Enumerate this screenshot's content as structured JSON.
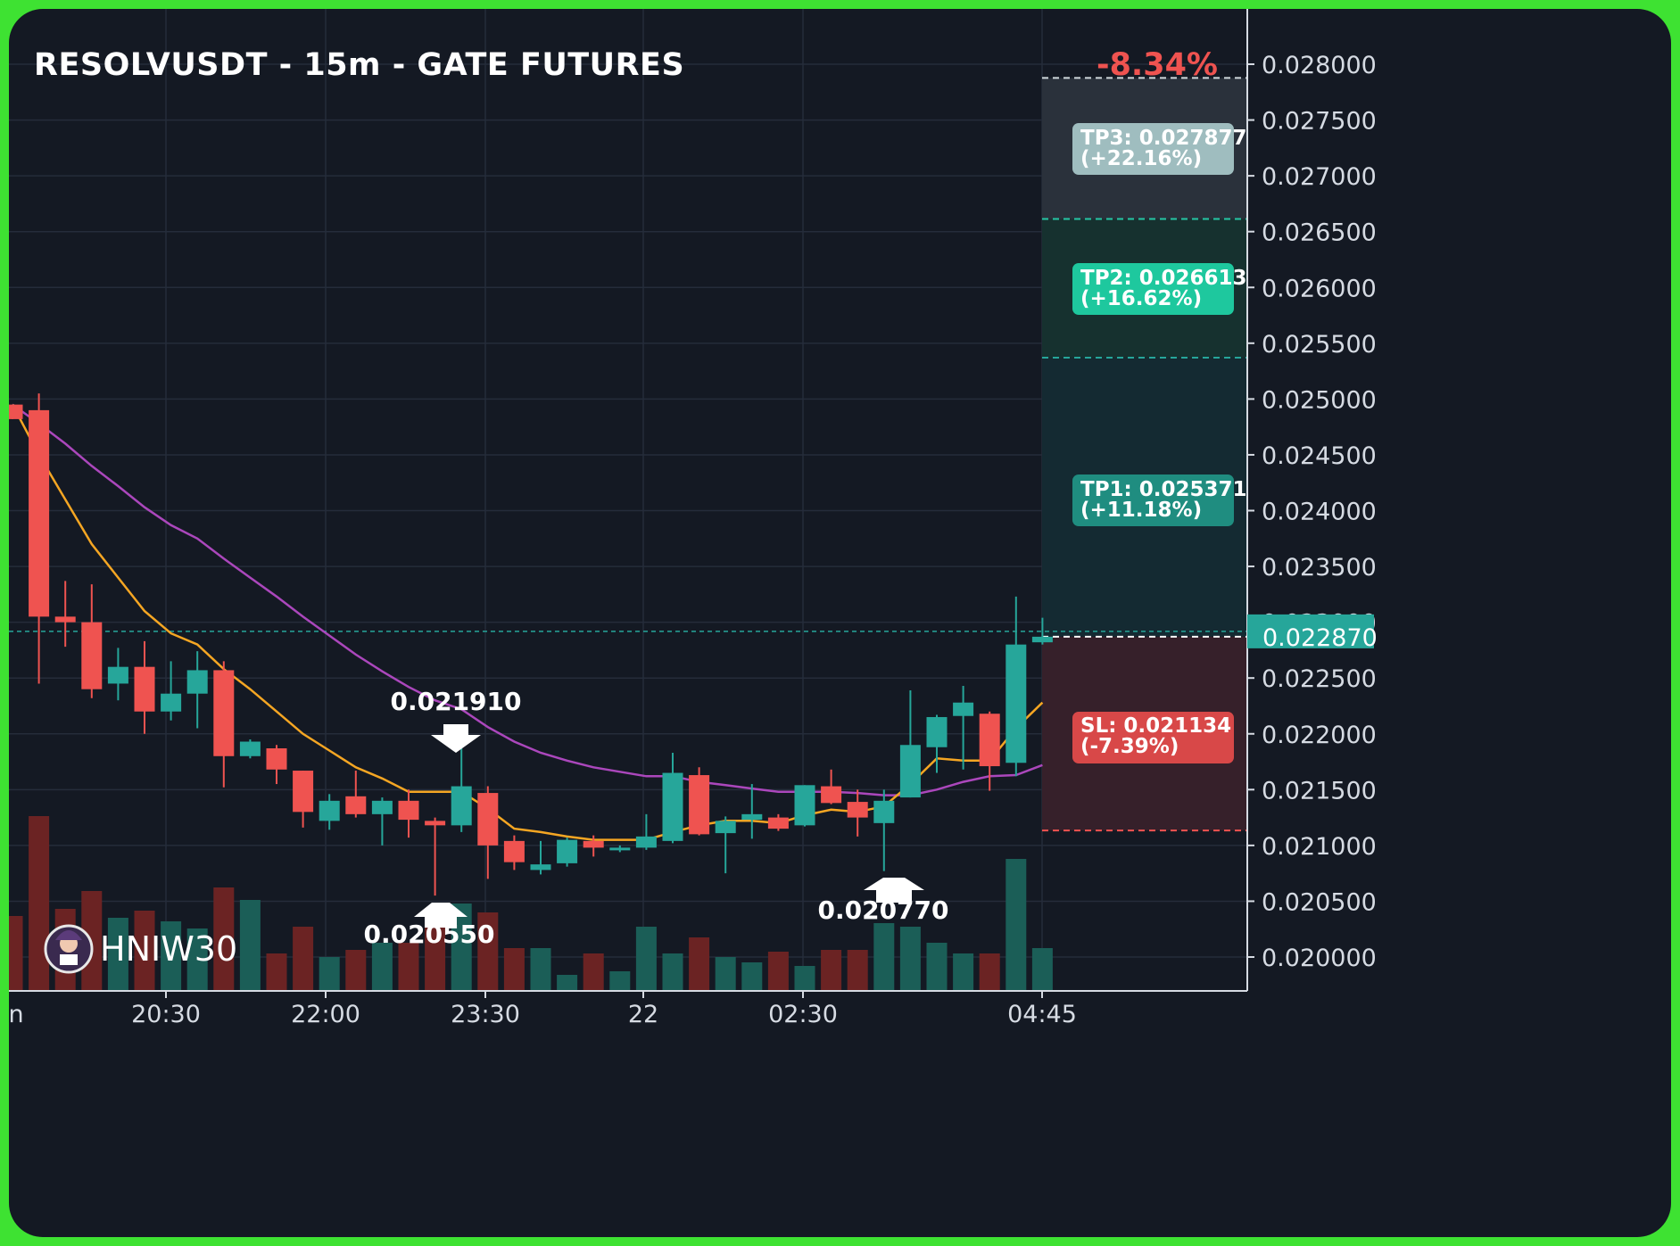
{
  "header": {
    "title": "RESOLVUSDT - 15m - GATE FUTURES",
    "change": "-8.34%"
  },
  "colors": {
    "background": "#141923",
    "frame": "#3ee232",
    "up": "#26a69a",
    "down": "#ef5350",
    "volume_up": "#1b5e57",
    "volume_down": "#6b2323",
    "ma_fast": "#f5a623",
    "ma_slow": "#ab47bc",
    "tp1": "#1f8d80",
    "tp2": "#1ec89e",
    "tp3": "#9fbdbf",
    "sl": "#d84848"
  },
  "price_axis": {
    "ticks": [
      "0.028000",
      "0.027500",
      "0.027000",
      "0.026500",
      "0.026000",
      "0.025500",
      "0.025000",
      "0.024500",
      "0.024000",
      "0.023500",
      "0.023000",
      "0.022500",
      "0.022000",
      "0.021500",
      "0.021000",
      "0.020500",
      "0.020000"
    ],
    "current_price": "0.022870"
  },
  "time_axis": {
    "labels": [
      "n",
      "20:30",
      "22:00",
      "23:30",
      "22",
      "02:30",
      "04:45"
    ]
  },
  "targets": {
    "tp3": {
      "line1": "TP3: 0.027877",
      "line2": "(+22.16%)"
    },
    "tp2": {
      "line1": "TP2: 0.026613",
      "line2": "(+16.62%)"
    },
    "tp1": {
      "line1": "TP1: 0.025371",
      "line2": "(+11.18%)"
    },
    "sl": {
      "line1": "SL: 0.021134",
      "line2": "(-7.39%)"
    }
  },
  "markers": {
    "high": "0.021910",
    "low1": "0.020550",
    "low2": "0.020770"
  },
  "watermark": {
    "name": "HNIW30"
  },
  "chart_data": {
    "type": "candlestick",
    "symbol": "RESOLVUSDT",
    "interval": "15m",
    "ylim": [
      0.0197,
      0.0283
    ],
    "candles": [
      {
        "o": 0.02495,
        "h": 0.02495,
        "l": 0.02482,
        "c": 0.02482
      },
      {
        "o": 0.0249,
        "h": 0.02505,
        "l": 0.02245,
        "c": 0.02305
      },
      {
        "o": 0.02305,
        "h": 0.02337,
        "l": 0.02278,
        "c": 0.023
      },
      {
        "o": 0.023,
        "h": 0.02334,
        "l": 0.02232,
        "c": 0.0224
      },
      {
        "o": 0.02245,
        "h": 0.02277,
        "l": 0.0223,
        "c": 0.0226
      },
      {
        "o": 0.0226,
        "h": 0.02283,
        "l": 0.022,
        "c": 0.0222
      },
      {
        "o": 0.0222,
        "h": 0.02265,
        "l": 0.02212,
        "c": 0.02236
      },
      {
        "o": 0.02236,
        "h": 0.02274,
        "l": 0.02205,
        "c": 0.02257
      },
      {
        "o": 0.02257,
        "h": 0.02265,
        "l": 0.02152,
        "c": 0.0218
      },
      {
        "o": 0.0218,
        "h": 0.02195,
        "l": 0.02178,
        "c": 0.02193
      },
      {
        "o": 0.02187,
        "h": 0.0219,
        "l": 0.02155,
        "c": 0.02168
      },
      {
        "o": 0.02167,
        "h": 0.02167,
        "l": 0.02116,
        "c": 0.0213
      },
      {
        "o": 0.02122,
        "h": 0.02146,
        "l": 0.02114,
        "c": 0.0214
      },
      {
        "o": 0.02144,
        "h": 0.02167,
        "l": 0.02125,
        "c": 0.02128
      },
      {
        "o": 0.02128,
        "h": 0.02143,
        "l": 0.021,
        "c": 0.0214
      },
      {
        "o": 0.0214,
        "h": 0.0215,
        "l": 0.02107,
        "c": 0.02123
      },
      {
        "o": 0.02122,
        "h": 0.02125,
        "l": 0.02055,
        "c": 0.02118
      },
      {
        "o": 0.02118,
        "h": 0.02191,
        "l": 0.02112,
        "c": 0.02153
      },
      {
        "o": 0.02147,
        "h": 0.02153,
        "l": 0.0207,
        "c": 0.021
      },
      {
        "o": 0.02104,
        "h": 0.02109,
        "l": 0.02078,
        "c": 0.02085
      },
      {
        "o": 0.02078,
        "h": 0.02104,
        "l": 0.02074,
        "c": 0.02083
      },
      {
        "o": 0.02084,
        "h": 0.02107,
        "l": 0.02081,
        "c": 0.02105
      },
      {
        "o": 0.02104,
        "h": 0.02109,
        "l": 0.0209,
        "c": 0.02098
      },
      {
        "o": 0.02097,
        "h": 0.021,
        "l": 0.02094,
        "c": 0.02098
      },
      {
        "o": 0.02098,
        "h": 0.02128,
        "l": 0.02096,
        "c": 0.02108
      },
      {
        "o": 0.02104,
        "h": 0.02183,
        "l": 0.02102,
        "c": 0.02165
      },
      {
        "o": 0.02163,
        "h": 0.0217,
        "l": 0.02109,
        "c": 0.0211
      },
      {
        "o": 0.02111,
        "h": 0.02126,
        "l": 0.02075,
        "c": 0.02122
      },
      {
        "o": 0.02123,
        "h": 0.02155,
        "l": 0.02106,
        "c": 0.02128
      },
      {
        "o": 0.02125,
        "h": 0.02128,
        "l": 0.02113,
        "c": 0.02115
      },
      {
        "o": 0.02118,
        "h": 0.02154,
        "l": 0.02117,
        "c": 0.02154
      },
      {
        "o": 0.02153,
        "h": 0.02168,
        "l": 0.02137,
        "c": 0.02138
      },
      {
        "o": 0.02139,
        "h": 0.0215,
        "l": 0.02108,
        "c": 0.02125
      },
      {
        "o": 0.0212,
        "h": 0.0215,
        "l": 0.02077,
        "c": 0.0214
      },
      {
        "o": 0.02143,
        "h": 0.02239,
        "l": 0.02143,
        "c": 0.0219
      },
      {
        "o": 0.02188,
        "h": 0.02217,
        "l": 0.02165,
        "c": 0.02215
      },
      {
        "o": 0.02216,
        "h": 0.02243,
        "l": 0.02168,
        "c": 0.02228
      },
      {
        "o": 0.02218,
        "h": 0.0222,
        "l": 0.02149,
        "c": 0.02171
      },
      {
        "o": 0.02174,
        "h": 0.02323,
        "l": 0.02162,
        "c": 0.0228
      },
      {
        "o": 0.02282,
        "h": 0.02304,
        "l": 0.0228,
        "c": 0.02287
      }
    ],
    "volume": [
      0.42,
      0.98,
      0.46,
      0.56,
      0.41,
      0.45,
      0.39,
      0.35,
      0.58,
      0.51,
      0.21,
      0.36,
      0.19,
      0.23,
      0.27,
      0.27,
      0.41,
      0.49,
      0.44,
      0.24,
      0.24,
      0.09,
      0.21,
      0.11,
      0.36,
      0.21,
      0.3,
      0.19,
      0.16,
      0.22,
      0.14,
      0.23,
      0.23,
      0.38,
      0.36,
      0.27,
      0.21,
      0.21,
      0.74,
      0.24
    ],
    "ma_fast": [
      0.02495,
      0.0245,
      0.0241,
      0.0237,
      0.0234,
      0.0231,
      0.0229,
      0.0228,
      0.02258,
      0.0224,
      0.0222,
      0.022,
      0.02185,
      0.0217,
      0.0216,
      0.02148,
      0.02148,
      0.02148,
      0.02133,
      0.02115,
      0.02112,
      0.02108,
      0.02105,
      0.02105,
      0.02105,
      0.02112,
      0.02118,
      0.02122,
      0.02122,
      0.0212,
      0.02127,
      0.02132,
      0.0213,
      0.02135,
      0.02155,
      0.02178,
      0.02176,
      0.02176,
      0.02205,
      0.02228
    ],
    "ma_slow": [
      0.02495,
      0.02478,
      0.0246,
      0.0244,
      0.02422,
      0.02403,
      0.02387,
      0.02375,
      0.02357,
      0.0234,
      0.02323,
      0.02305,
      0.02288,
      0.02271,
      0.02256,
      0.02242,
      0.0223,
      0.02222,
      0.02206,
      0.02193,
      0.02183,
      0.02176,
      0.0217,
      0.02166,
      0.02162,
      0.02162,
      0.02157,
      0.02154,
      0.02151,
      0.02148,
      0.02148,
      0.02148,
      0.02147,
      0.02145,
      0.02145,
      0.0215,
      0.02157,
      0.02162,
      0.02163,
      0.02172
    ],
    "levels": {
      "entry": 0.02287,
      "tp1": 0.025371,
      "tp2": 0.026613,
      "tp3": 0.027877,
      "sl": 0.021134
    }
  }
}
